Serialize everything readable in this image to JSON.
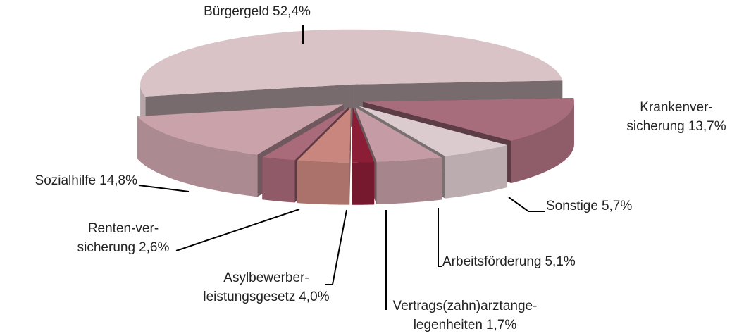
{
  "chart_data": {
    "type": "pie3d",
    "categories": [
      [
        "Bürgergeld"
      ],
      [
        "Krankenver-",
        "sicherung"
      ],
      [
        "Sonstige"
      ],
      [
        "Arbeitsförderung"
      ],
      [
        "Vertrags(zahn)arztange-",
        "legenheiten"
      ],
      [
        "Asylbewerber-",
        "leistungsgesetz"
      ],
      [
        "Renten-ver-",
        "sicherung"
      ],
      [
        "Sozialhilfe"
      ]
    ],
    "values": [
      52.4,
      13.7,
      5.7,
      5.1,
      1.7,
      4.0,
      2.6,
      14.8
    ],
    "value_labels": [
      "52,4%",
      "13,7%",
      "5,7%",
      "5,1%",
      "1,7%",
      "4,0%",
      "2,6%",
      "14,8%"
    ],
    "colors": [
      "#d9c3c7",
      "#a86d7d",
      "#dccbce",
      "#c59ca6",
      "#8c1d36",
      "#c8867e",
      "#a96a7a",
      "#c9a2aa"
    ]
  }
}
